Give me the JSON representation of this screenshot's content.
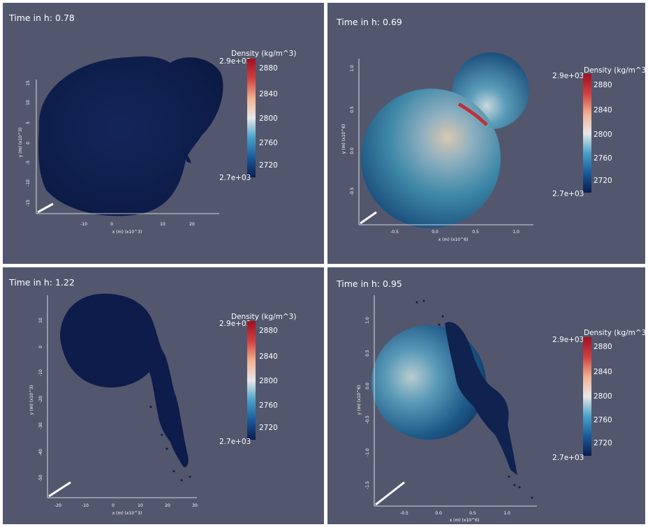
{
  "colorbar": {
    "title": "Density (kg/m^3)",
    "max_label": "2.9e+03",
    "min_label": "2.7e+03",
    "ticks": [
      "2880",
      "2840",
      "2800",
      "2760",
      "2720"
    ],
    "range": [
      2700,
      2900
    ],
    "colors": [
      "#0c1c4d",
      "#1a5a9a",
      "#4aa0c8",
      "#e8e8e8",
      "#f0b090",
      "#d04040",
      "#a01020"
    ]
  },
  "chart_data": [
    {
      "type": "scatter",
      "title": "Time in h: 0.78",
      "xlabel": "x (m) (x10^3)",
      "ylabel": "y (m) (x10^3)",
      "x_ticks": [
        "-10",
        "0",
        "10",
        "20"
      ],
      "y_ticks": [
        "15",
        "10",
        "5",
        "0",
        "-5",
        "-10",
        "-15"
      ],
      "xlim": [
        -19,
        27
      ],
      "ylim": [
        -18,
        18
      ],
      "color_scale": "Density (kg/m^3)",
      "dominant_density": 2700
    },
    {
      "type": "scatter",
      "title": "Time in h: 0.69",
      "xlabel": "x (m) (x10^6)",
      "ylabel": "y (m) (x10^6)",
      "x_ticks": [
        "-0.5",
        "0.0",
        "0.5",
        "1.0"
      ],
      "y_ticks": [
        "1.0",
        "0.5",
        "0.0",
        "-0.5"
      ],
      "xlim": [
        -0.9,
        1.2
      ],
      "ylim": [
        -0.9,
        1.2
      ],
      "color_scale": "Density (kg/m^3)",
      "dominant_density": 2770
    },
    {
      "type": "scatter",
      "title": "Time in h: 1.22",
      "xlabel": "x (m) (x10^3)",
      "ylabel": "y (m) (x10^3)",
      "x_ticks": [
        "-20",
        "-10",
        "0",
        "10",
        "20",
        "30"
      ],
      "y_ticks": [
        "10",
        "0",
        "-10",
        "-20",
        "-30",
        "-40",
        "-50"
      ],
      "xlim": [
        -24,
        32
      ],
      "ylim": [
        -58,
        16
      ],
      "color_scale": "Density (kg/m^3)",
      "dominant_density": 2700
    },
    {
      "type": "scatter",
      "title": "Time in h: 0.95",
      "xlabel": "x (m) (x10^6)",
      "ylabel": "y (m) (x10^6)",
      "x_ticks": [
        "-0.5",
        "0.0",
        "0.5",
        "1.0"
      ],
      "y_ticks": [
        "1.0",
        "0.5",
        "0.0",
        "-0.5",
        "-1.0",
        "-1.5"
      ],
      "xlim": [
        -0.85,
        1.4
      ],
      "ylim": [
        -1.8,
        1.3
      ],
      "color_scale": "Density (kg/m^3)",
      "dominant_density": 2760
    }
  ]
}
